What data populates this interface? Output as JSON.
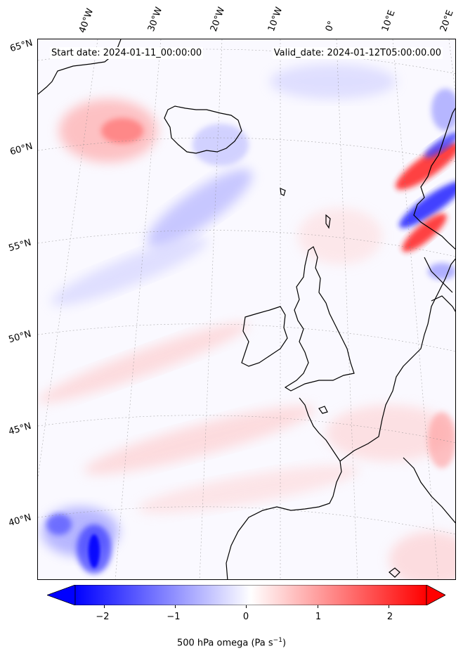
{
  "map": {
    "start_date_text": "Start date: 2024-01-11_00:00:00",
    "valid_date_text": "Valid_date: 2024-01-12T05:00:00.00",
    "lon_labels": [
      "40°W",
      "30°W",
      "20°W",
      "10°W",
      "0°",
      "10°E",
      "20°E"
    ],
    "lat_labels": [
      "65°N",
      "60°N",
      "55°N",
      "50°N",
      "45°N",
      "40°N"
    ],
    "projection": "Lambert conformal",
    "gridlines": true,
    "coastlines": true
  },
  "colorbar": {
    "ticks": [
      "−2",
      "−1",
      "0",
      "1",
      "2"
    ],
    "label_main": "500 hPa omega (Pa s",
    "label_sup": "−1",
    "label_end": ")",
    "vmin": -2.5,
    "vmax": 2.5,
    "cmap": "bwr",
    "low_color": "#0000ff",
    "mid_color": "#ffffff",
    "high_color": "#ff0000"
  }
}
